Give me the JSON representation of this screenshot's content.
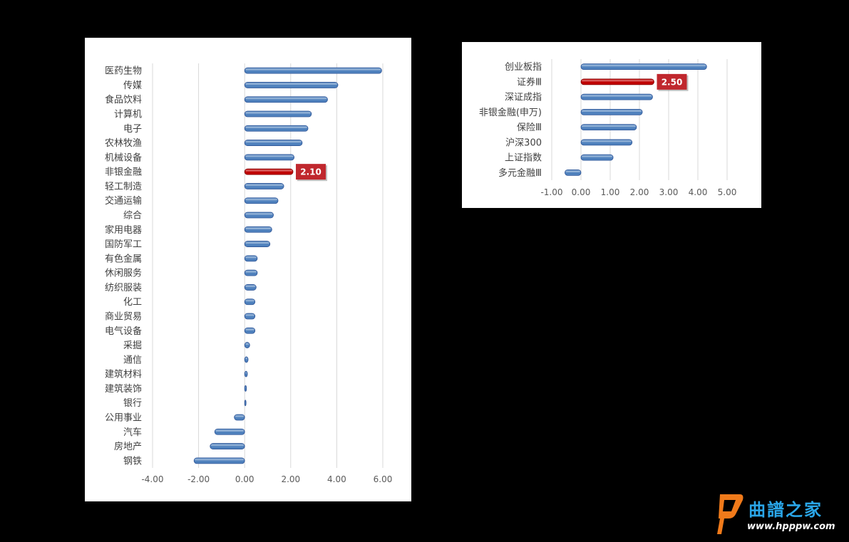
{
  "chart_data": [
    {
      "type": "bar",
      "orientation": "horizontal",
      "categories": [
        "医药生物",
        "传媒",
        "食品饮料",
        "计算机",
        "电子",
        "农林牧渔",
        "机械设备",
        "非银金融",
        "轻工制造",
        "交通运输",
        "综合",
        "家用电器",
        "国防军工",
        "有色金属",
        "休闲服务",
        "纺织服装",
        "化工",
        "商业贸易",
        "电气设备",
        "采掘",
        "通信",
        "建筑材料",
        "建筑装饰",
        "银行",
        "公用事业",
        "汽车",
        "房地产",
        "钢铁"
      ],
      "values": [
        5.95,
        4.05,
        3.6,
        2.9,
        2.75,
        2.5,
        2.15,
        2.1,
        1.7,
        1.45,
        1.25,
        1.18,
        1.1,
        0.55,
        0.55,
        0.5,
        0.45,
        0.45,
        0.45,
        0.22,
        0.15,
        0.12,
        0.08,
        0.05,
        -0.45,
        -1.3,
        -1.5,
        -2.2
      ],
      "highlight_index": 7,
      "highlight_label": "2.10",
      "xlim": [
        -4,
        6
      ],
      "ticks": [
        "-4.00",
        "-2.00",
        "0.00",
        "2.00",
        "4.00",
        "6.00"
      ],
      "tick_values": [
        -4,
        -2,
        0,
        2,
        4,
        6
      ],
      "grid": true
    },
    {
      "type": "bar",
      "orientation": "horizontal",
      "categories": [
        "创业板指",
        "证券Ⅲ",
        "深证成指",
        "非银金融(申万)",
        "保险Ⅲ",
        "沪深300",
        "上证指数",
        "多元金融Ⅲ"
      ],
      "values": [
        4.3,
        2.5,
        2.45,
        2.1,
        1.9,
        1.75,
        1.1,
        -0.55
      ],
      "highlight_index": 1,
      "highlight_label": "2.50",
      "xlim": [
        -1,
        5
      ],
      "ticks": [
        "-1.00",
        "0.00",
        "1.00",
        "2.00",
        "3.00",
        "4.00",
        "5.00"
      ],
      "tick_values": [
        -1,
        0,
        1,
        2,
        3,
        4,
        5
      ],
      "grid": true
    }
  ],
  "colors": {
    "bar": "#4f81bd",
    "bar_edge": "#2f5597",
    "highlight": "#c00000",
    "highlight_edge": "#7f0000",
    "label_box": "#c0272d"
  },
  "watermark": {
    "text": "曲譜之家",
    "url": "www.hpppw.com"
  }
}
